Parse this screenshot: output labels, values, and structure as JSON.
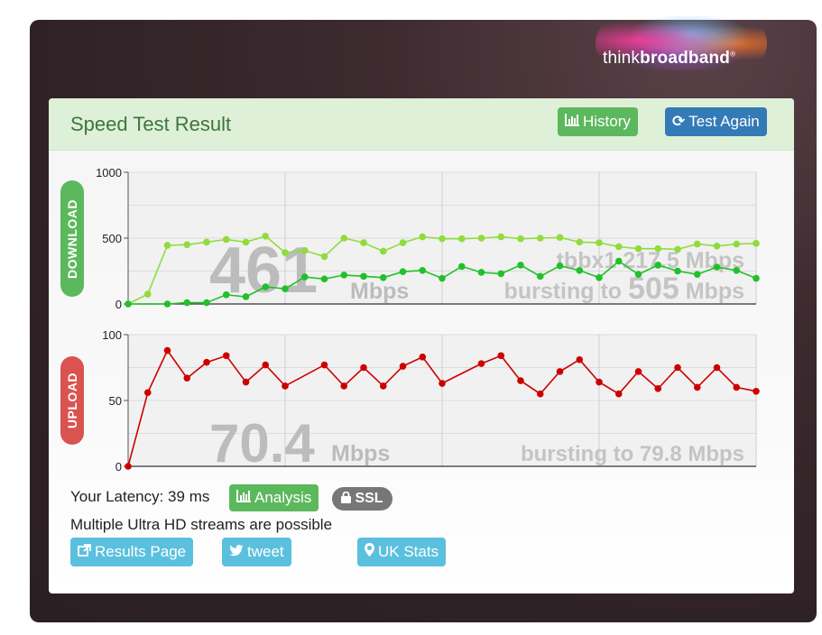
{
  "logo": {
    "think": "think",
    "broadband": "broadband",
    "reg": "®"
  },
  "panel": {
    "title": "Speed Test Result",
    "history_label": "History",
    "test_again_label": "Test Again"
  },
  "download": {
    "badge": "DOWNLOAD",
    "speed": "461",
    "unit": "Mbps",
    "node_text": "tbbx1 217.5 Mbps",
    "bursting_prefix": "bursting to",
    "bursting_value": "505",
    "bursting_unit": "Mbps"
  },
  "upload": {
    "badge": "UPLOAD",
    "speed": "70.4",
    "unit": "Mbps",
    "bursting_text": "bursting to 79.8 Mbps"
  },
  "footer": {
    "latency_text": "Your Latency: 39 ms",
    "analysis_label": "Analysis",
    "ssl_label": "SSL",
    "streams_text": "Multiple Ultra HD streams are possible",
    "results_label": "Results Page",
    "tweet_label": "tweet",
    "ukstats_label": "UK Stats"
  },
  "colors": {
    "download_light": "#8fdc3c",
    "download_dark": "#22c02a",
    "upload": "#cc0000",
    "header_bg": "#dff0d8",
    "title_green": "#3c763d"
  },
  "chart_data": [
    {
      "type": "line",
      "title": "",
      "ylim": [
        0,
        1000
      ],
      "yticks": [
        "0",
        "500",
        "1000"
      ],
      "grid": true,
      "x": [
        0,
        1,
        2,
        3,
        4,
        5,
        6,
        7,
        8,
        9,
        10,
        11,
        12,
        13,
        14,
        15,
        16,
        17,
        18,
        19,
        20,
        21,
        22,
        23,
        24,
        25,
        26,
        27,
        28,
        29,
        30,
        31,
        32
      ],
      "series": [
        {
          "values": [
            0,
            75,
            445,
            450,
            470,
            490,
            470,
            515,
            390,
            405,
            360,
            500,
            465,
            400,
            465,
            510,
            495,
            495,
            500,
            510,
            495,
            500,
            505,
            470,
            465,
            435,
            420,
            420,
            415,
            455,
            440,
            455,
            460
          ]
        },
        {
          "values": [
            0,
            null,
            0,
            10,
            10,
            70,
            55,
            130,
            115,
            205,
            190,
            220,
            210,
            200,
            245,
            255,
            195,
            285,
            240,
            230,
            295,
            210,
            290,
            255,
            200,
            325,
            225,
            295,
            250,
            225,
            280,
            255,
            195
          ]
        }
      ]
    },
    {
      "type": "line",
      "title": "",
      "ylim": [
        0,
        100
      ],
      "yticks": [
        "0",
        "50",
        "100"
      ],
      "grid": true,
      "x": [
        0,
        1,
        2,
        3,
        4,
        5,
        6,
        7,
        8,
        10,
        11,
        12,
        13,
        14,
        15,
        16,
        18,
        19,
        20,
        21,
        22,
        23,
        24,
        25,
        26,
        27,
        28,
        29,
        30,
        31,
        32
      ],
      "series": [
        {
          "values": [
            0,
            56,
            88,
            67,
            79,
            84,
            64,
            77,
            61,
            77,
            61,
            75,
            61,
            76,
            83,
            63,
            78,
            84,
            65,
            55,
            72,
            81,
            64,
            55,
            72,
            59,
            75,
            60,
            75,
            60,
            57
          ]
        }
      ]
    }
  ]
}
